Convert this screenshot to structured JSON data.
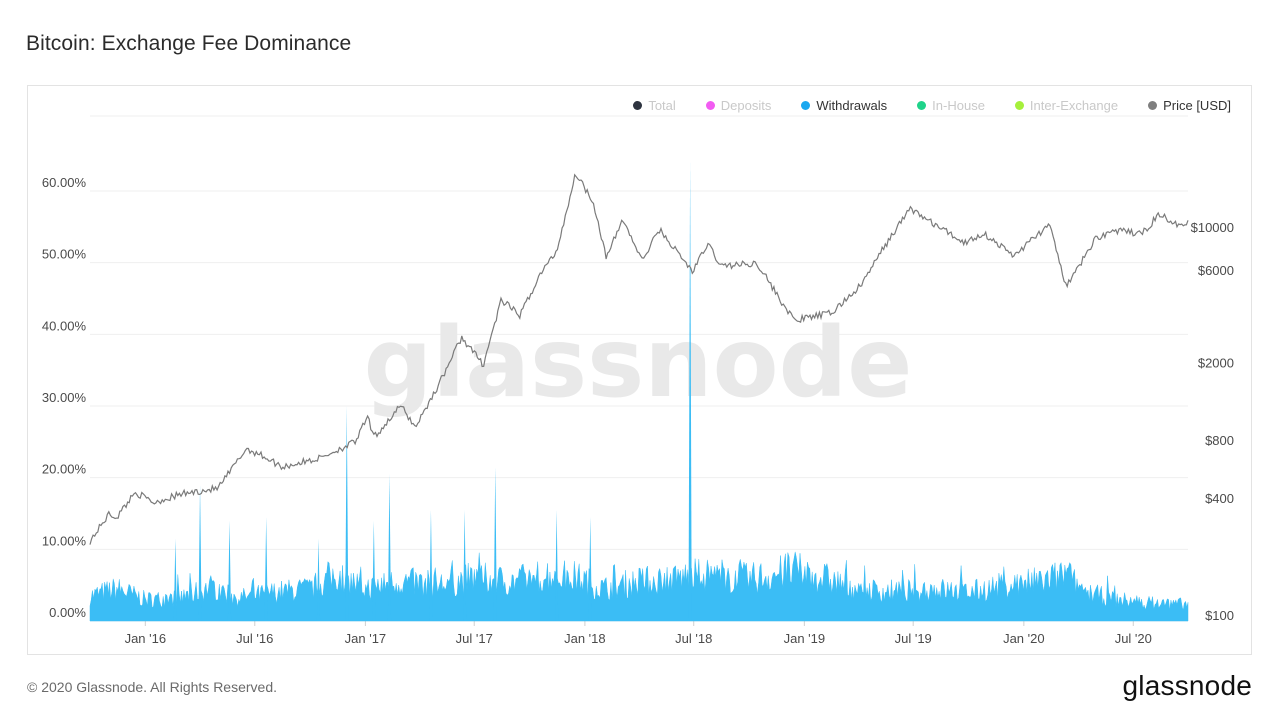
{
  "header": {
    "title": "Bitcoin: Exchange Fee Dominance"
  },
  "footer": {
    "copyright": "© 2020 Glassnode. All Rights Reserved.",
    "brand": "glassnode"
  },
  "watermark": "glassnode",
  "chart_data": {
    "type": "area",
    "title": "Bitcoin: Exchange Fee Dominance",
    "legend": {
      "placement": "top-right",
      "items": [
        {
          "name": "Total",
          "color": "#2e3440",
          "active": false
        },
        {
          "name": "Deposits",
          "color": "#f25cf2",
          "active": false
        },
        {
          "name": "Withdrawals",
          "color": "#1aa8f0",
          "active": true
        },
        {
          "name": "In-House",
          "color": "#1fd38a",
          "active": false
        },
        {
          "name": "Inter-Exchange",
          "color": "#a6f03c",
          "active": false
        },
        {
          "name": "Price [USD]",
          "color": "#7f7f7f",
          "active": true
        }
      ]
    },
    "x_ticks": [
      "Jan '16",
      "Jul '16",
      "Jan '17",
      "Jul '17",
      "Jan '18",
      "Jul '18",
      "Jan '19",
      "Jul '19",
      "Jan '20",
      "Jul '20"
    ],
    "x_range": [
      "2015-10-01",
      "2020-09-30"
    ],
    "y_left": {
      "ticks": [
        "0.00%",
        "10.00%",
        "20.00%",
        "30.00%",
        "40.00%",
        "50.00%",
        "60.00%"
      ],
      "range": [
        0,
        60
      ]
    },
    "y_right": {
      "ticks": [
        "$100",
        "$400",
        "$800",
        "$2000",
        "$6000",
        "$10000"
      ],
      "scale": "log"
    },
    "grid": true,
    "series": [
      {
        "name": "Withdrawals",
        "axis": "left",
        "color": "#3bbdf5",
        "points": [
          [
            "2015-10-01",
            3.5
          ],
          [
            "2015-11-15",
            4.5
          ],
          [
            "2016-01-01",
            3.0
          ],
          [
            "2016-03-01",
            3.2
          ],
          [
            "2016-04-20",
            4.8
          ],
          [
            "2016-06-01",
            3.2
          ],
          [
            "2016-08-01",
            4.0
          ],
          [
            "2016-10-01",
            4.5
          ],
          [
            "2016-11-15",
            6.5
          ],
          [
            "2017-01-01",
            4.5
          ],
          [
            "2017-03-01",
            5.5
          ],
          [
            "2017-05-01",
            5.0
          ],
          [
            "2017-07-01",
            6.0
          ],
          [
            "2017-09-01",
            5.5
          ],
          [
            "2017-11-01",
            6.5
          ],
          [
            "2017-12-20",
            6.0
          ],
          [
            "2018-02-01",
            4.5
          ],
          [
            "2018-04-01",
            5.5
          ],
          [
            "2018-06-01",
            6.0
          ],
          [
            "2018-08-01",
            6.5
          ],
          [
            "2018-10-01",
            5.8
          ],
          [
            "2018-12-15",
            7.0
          ],
          [
            "2019-02-01",
            6.0
          ],
          [
            "2019-04-01",
            4.5
          ],
          [
            "2019-06-01",
            4.0
          ],
          [
            "2019-08-01",
            4.5
          ],
          [
            "2019-10-01",
            4.0
          ],
          [
            "2019-12-01",
            5.0
          ],
          [
            "2020-02-01",
            5.5
          ],
          [
            "2020-03-12",
            6.5
          ],
          [
            "2020-04-15",
            4.0
          ],
          [
            "2020-06-01",
            3.0
          ],
          [
            "2020-08-01",
            2.5
          ],
          [
            "2020-09-30",
            2.3
          ]
        ],
        "spikes": [
          [
            "2016-02-20",
            11.5
          ],
          [
            "2016-04-01",
            19.0
          ],
          [
            "2016-05-20",
            14.0
          ],
          [
            "2016-07-20",
            14.5
          ],
          [
            "2016-10-15",
            11.5
          ],
          [
            "2016-12-01",
            30.0
          ],
          [
            "2017-01-15",
            14.0
          ],
          [
            "2017-02-10",
            20.5
          ],
          [
            "2017-04-20",
            15.5
          ],
          [
            "2017-06-15",
            15.5
          ],
          [
            "2017-08-05",
            21.5
          ],
          [
            "2017-11-15",
            15.5
          ],
          [
            "2018-01-10",
            14.5
          ],
          [
            "2018-06-25",
            64.0
          ]
        ]
      },
      {
        "name": "Price [USD]",
        "axis": "right",
        "color": "#7a7a7a",
        "points": [
          [
            "2015-10-01",
            240
          ],
          [
            "2015-11-01",
            330
          ],
          [
            "2015-11-15",
            320
          ],
          [
            "2015-12-15",
            430
          ],
          [
            "2016-01-15",
            380
          ],
          [
            "2016-03-01",
            420
          ],
          [
            "2016-05-01",
            450
          ],
          [
            "2016-06-17",
            720
          ],
          [
            "2016-07-15",
            660
          ],
          [
            "2016-08-15",
            580
          ],
          [
            "2016-10-15",
            640
          ],
          [
            "2016-12-15",
            780
          ],
          [
            "2017-01-05",
            1050
          ],
          [
            "2017-01-15",
            820
          ],
          [
            "2017-03-01",
            1200
          ],
          [
            "2017-03-25",
            930
          ],
          [
            "2017-05-01",
            1500
          ],
          [
            "2017-06-10",
            2700
          ],
          [
            "2017-07-16",
            1950
          ],
          [
            "2017-08-15",
            4200
          ],
          [
            "2017-09-15",
            3500
          ],
          [
            "2017-10-20",
            5800
          ],
          [
            "2017-11-15",
            7500
          ],
          [
            "2017-12-17",
            19000
          ],
          [
            "2018-01-15",
            13500
          ],
          [
            "2018-02-06",
            6900
          ],
          [
            "2018-03-05",
            11000
          ],
          [
            "2018-04-06",
            6700
          ],
          [
            "2018-05-05",
            9700
          ],
          [
            "2018-06-29",
            5900
          ],
          [
            "2018-07-25",
            8200
          ],
          [
            "2018-08-15",
            6300
          ],
          [
            "2018-10-15",
            6500
          ],
          [
            "2018-11-20",
            4300
          ],
          [
            "2018-12-15",
            3300
          ],
          [
            "2019-02-15",
            3600
          ],
          [
            "2019-04-05",
            5000
          ],
          [
            "2019-05-15",
            8000
          ],
          [
            "2019-06-26",
            12500
          ],
          [
            "2019-08-01",
            10500
          ],
          [
            "2019-09-25",
            8300
          ],
          [
            "2019-10-26",
            9300
          ],
          [
            "2019-12-15",
            7100
          ],
          [
            "2020-02-12",
            10300
          ],
          [
            "2020-03-12",
            4900
          ],
          [
            "2020-04-30",
            8800
          ],
          [
            "2020-06-01",
            9600
          ],
          [
            "2020-07-15",
            9200
          ],
          [
            "2020-08-15",
            11800
          ],
          [
            "2020-09-05",
            10200
          ],
          [
            "2020-09-30",
            10700
          ]
        ]
      }
    ]
  }
}
